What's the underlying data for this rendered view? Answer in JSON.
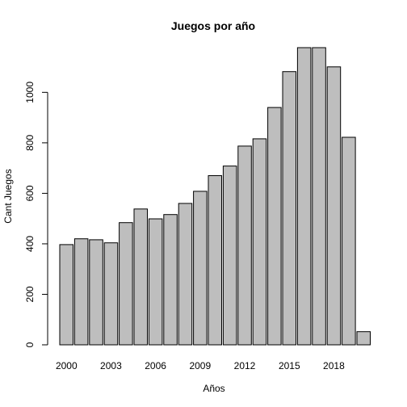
{
  "chart_data": {
    "type": "bar",
    "title": "Juegos por año",
    "xlabel": "Años",
    "ylabel": "Cant Juegos",
    "categories": [
      "2000",
      "2001",
      "2002",
      "2003",
      "2004",
      "2005",
      "2006",
      "2007",
      "2008",
      "2009",
      "2010",
      "2011",
      "2012",
      "2013",
      "2014",
      "2015",
      "2016",
      "2017",
      "2018",
      "2019",
      "2020"
    ],
    "x_tick_labels": [
      "2000",
      "2003",
      "2006",
      "2009",
      "2012",
      "2015",
      "2018"
    ],
    "values": [
      397,
      420,
      416,
      404,
      484,
      538,
      499,
      516,
      560,
      608,
      670,
      708,
      787,
      816,
      940,
      1082,
      1177,
      1177,
      1101,
      822,
      52
    ],
    "yticks": [
      0,
      200,
      400,
      600,
      800,
      1000
    ],
    "ylim": [
      0,
      1177
    ],
    "grid": false,
    "bar_color": "#bebebe",
    "edge_color": "#000000"
  }
}
